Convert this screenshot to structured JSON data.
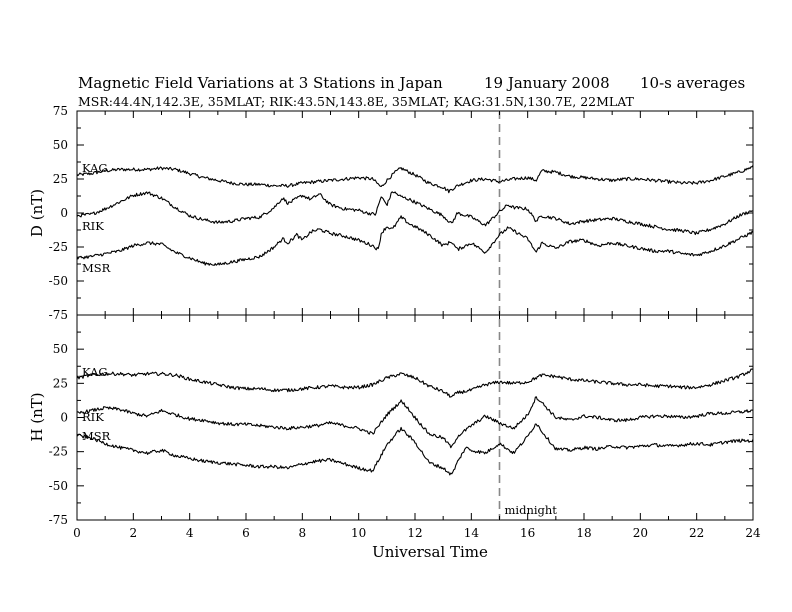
{
  "header": {
    "title": "Magnetic Field Variations at 3 Stations in Japan",
    "date": "19 January 2008",
    "averaging": "10-s averages",
    "stations_line": "MSR:44.4N,142.3E, 35MLAT;  RIK:43.5N,143.8E, 35MLAT;  KAG:31.5N,130.7E, 22MLAT"
  },
  "chart_data": [
    {
      "type": "line",
      "panel": "D",
      "ylabel": "D (nT)",
      "xlim": [
        0,
        24
      ],
      "ylim": [
        -75,
        75
      ],
      "yticks": [
        75,
        50,
        25,
        0,
        -25,
        -50,
        -75
      ],
      "series": [
        {
          "name": "KAG",
          "x": [
            0,
            0.5,
            1,
            1.5,
            2,
            2.5,
            3,
            3.5,
            4,
            4.5,
            5,
            5.5,
            6,
            6.5,
            7,
            7.5,
            8,
            8.5,
            9,
            9.5,
            10,
            10.5,
            10.8,
            11,
            11.3,
            11.5,
            11.8,
            12,
            12.5,
            13,
            13.2,
            13.5,
            14,
            14.5,
            15,
            15.5,
            16,
            16.3,
            16.5,
            17,
            17.5,
            18,
            18.5,
            19,
            19.5,
            20,
            20.5,
            21,
            21.5,
            22,
            22.5,
            23,
            23.5,
            24
          ],
          "values": [
            28,
            29,
            31,
            32,
            32,
            32,
            33,
            32,
            29,
            26,
            24,
            22,
            21,
            21,
            20,
            20,
            22,
            23,
            24,
            25,
            26,
            25,
            19,
            24,
            30,
            33,
            30,
            28,
            22,
            19,
            16,
            20,
            24,
            25,
            23,
            25,
            26,
            24,
            31,
            30,
            27,
            26,
            25,
            24,
            25,
            25,
            24,
            23,
            22,
            22,
            24,
            27,
            30,
            34
          ]
        },
        {
          "name": "RIK",
          "x": [
            0,
            0.5,
            1,
            1.5,
            2,
            2.5,
            3,
            3.5,
            4,
            4.5,
            5,
            5.5,
            6,
            6.5,
            7,
            7.3,
            7.5,
            8,
            8.3,
            8.6,
            9,
            9.5,
            10,
            10.3,
            10.6,
            10.8,
            11,
            11.2,
            11.5,
            11.8,
            12,
            12.5,
            13,
            13.3,
            13.5,
            14,
            14.5,
            15,
            15.3,
            15.5,
            16,
            16.3,
            16.5,
            17,
            17.5,
            18,
            18.5,
            19,
            19.5,
            20,
            20.5,
            21,
            21.5,
            22,
            22.5,
            23,
            23.5,
            24
          ],
          "values": [
            -2,
            -1,
            3,
            8,
            13,
            15,
            11,
            4,
            -2,
            -5,
            -7,
            -6,
            -4,
            -3,
            4,
            11,
            7,
            13,
            10,
            14,
            6,
            3,
            2,
            0,
            -1,
            12,
            6,
            16,
            12,
            10,
            8,
            3,
            -2,
            -8,
            0,
            -3,
            -9,
            1,
            6,
            4,
            3,
            -6,
            -2,
            -4,
            -8,
            -6,
            -5,
            -4,
            -6,
            -8,
            -10,
            -12,
            -13,
            -15,
            -12,
            -8,
            -2,
            2
          ]
        },
        {
          "name": "MSR",
          "x": [
            0,
            0.5,
            1,
            1.5,
            2,
            2.5,
            3,
            3.5,
            4,
            4.5,
            5,
            5.5,
            6,
            6.5,
            7,
            7.3,
            7.5,
            7.8,
            8,
            8.3,
            8.6,
            9,
            9.5,
            10,
            10.5,
            10.7,
            10.8,
            11,
            11.2,
            11.5,
            11.8,
            12,
            12.5,
            13,
            13.3,
            13.5,
            14,
            14.5,
            15,
            15.3,
            15.5,
            16,
            16.3,
            16.5,
            17,
            17.5,
            18,
            18.5,
            19,
            19.5,
            20,
            20.5,
            21,
            21.5,
            22,
            22.5,
            23,
            23.5,
            24
          ],
          "values": [
            -33,
            -32,
            -30,
            -28,
            -24,
            -22,
            -23,
            -29,
            -33,
            -37,
            -38,
            -36,
            -34,
            -32,
            -25,
            -19,
            -22,
            -16,
            -20,
            -14,
            -12,
            -15,
            -17,
            -20,
            -24,
            -27,
            -15,
            -10,
            -12,
            -3,
            -8,
            -10,
            -16,
            -24,
            -21,
            -27,
            -22,
            -29,
            -16,
            -11,
            -13,
            -19,
            -29,
            -22,
            -26,
            -21,
            -20,
            -24,
            -22,
            -24,
            -26,
            -28,
            -28,
            -30,
            -31,
            -28,
            -24,
            -19,
            -14
          ]
        }
      ]
    },
    {
      "type": "line",
      "panel": "H",
      "ylabel": "H (nT)",
      "xlabel": "Universal Time",
      "xlim": [
        0,
        24
      ],
      "ylim": [
        -75,
        75
      ],
      "yticks": [
        75,
        50,
        25,
        0,
        -25,
        -50,
        -75
      ],
      "xticks": [
        0,
        2,
        4,
        6,
        8,
        10,
        12,
        14,
        16,
        18,
        20,
        22,
        24
      ],
      "series": [
        {
          "name": "KAG",
          "x": [
            0,
            0.5,
            1,
            1.5,
            2,
            2.5,
            3,
            3.5,
            4,
            4.5,
            5,
            5.5,
            6,
            6.5,
            7,
            7.5,
            8,
            8.5,
            9,
            9.5,
            10,
            10.5,
            11,
            11.5,
            12,
            12.5,
            13,
            13.3,
            13.5,
            14,
            14.5,
            15,
            15.5,
            16,
            16.5,
            17,
            17.5,
            18,
            18.5,
            19,
            19.5,
            20,
            20.5,
            21,
            21.5,
            22,
            22.5,
            23,
            23.5,
            24
          ],
          "values": [
            29,
            31,
            32,
            32,
            31,
            32,
            32,
            31,
            28,
            26,
            24,
            22,
            21,
            21,
            20,
            20,
            21,
            22,
            23,
            22,
            22,
            24,
            29,
            32,
            29,
            23,
            19,
            15,
            18,
            20,
            24,
            26,
            25,
            26,
            31,
            30,
            28,
            27,
            26,
            25,
            24,
            24,
            23,
            23,
            22,
            22,
            24,
            27,
            30,
            35
          ]
        },
        {
          "name": "RIK",
          "x": [
            0,
            0.5,
            1,
            1.5,
            2,
            2.5,
            3,
            3.5,
            4,
            4.5,
            5,
            5.5,
            6,
            6.5,
            7,
            7.5,
            8,
            8.5,
            9,
            9.5,
            10,
            10.5,
            11,
            11.5,
            11.7,
            12,
            12.5,
            13,
            13.3,
            13.5,
            14,
            14.5,
            15,
            15.5,
            16,
            16.3,
            16.5,
            17,
            17.5,
            18,
            18.5,
            19,
            19.5,
            20,
            20.5,
            21,
            21.5,
            22,
            22.5,
            23,
            23.5,
            24
          ],
          "values": [
            3,
            5,
            7,
            6,
            3,
            1,
            5,
            2,
            -1,
            -2,
            -4,
            -5,
            -5,
            -6,
            -7,
            -8,
            -7,
            -6,
            -4,
            -6,
            -8,
            -12,
            2,
            12,
            8,
            0,
            -12,
            -15,
            -22,
            -14,
            -6,
            1,
            -4,
            -8,
            2,
            15,
            11,
            0,
            -2,
            1,
            0,
            -2,
            -2,
            0,
            1,
            1,
            0,
            1,
            3,
            3,
            4,
            5
          ]
        },
        {
          "name": "MSR",
          "x": [
            0,
            0.5,
            1,
            1.5,
            2,
            2.5,
            3,
            3.5,
            4,
            4.5,
            5,
            5.5,
            6,
            6.5,
            7,
            7.5,
            8,
            8.5,
            9,
            9.5,
            10,
            10.5,
            11,
            11.5,
            12,
            12.5,
            13,
            13.3,
            13.5,
            13.8,
            14,
            14.5,
            15,
            15.5,
            16,
            16.3,
            16.5,
            17,
            17.5,
            18,
            18.5,
            19,
            19.5,
            20,
            20.5,
            21,
            21.5,
            22,
            22.5,
            23,
            23.5,
            24
          ],
          "values": [
            -13,
            -15,
            -19,
            -22,
            -24,
            -26,
            -24,
            -28,
            -30,
            -32,
            -33,
            -34,
            -35,
            -36,
            -36,
            -37,
            -34,
            -32,
            -31,
            -34,
            -37,
            -39,
            -20,
            -8,
            -18,
            -33,
            -37,
            -42,
            -33,
            -22,
            -24,
            -26,
            -19,
            -26,
            -14,
            -4,
            -10,
            -23,
            -24,
            -22,
            -23,
            -21,
            -22,
            -21,
            -20,
            -21,
            -20,
            -19,
            -20,
            -18,
            -17,
            -17
          ]
        }
      ]
    }
  ],
  "annotations": {
    "midnight_label": "midnight",
    "midnight_ut": 15
  }
}
